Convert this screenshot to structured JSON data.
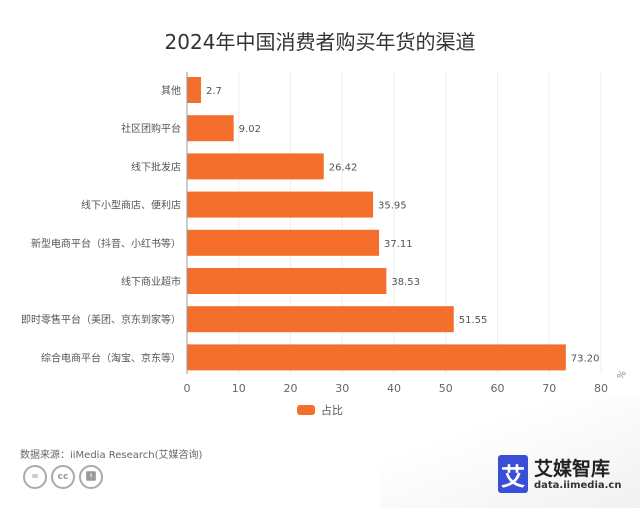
{
  "chart_data": {
    "type": "bar",
    "orientation": "horizontal",
    "title": "2024年中国消费者购买年货的渠道",
    "categories": [
      "其他",
      "社区团购平台",
      "线下批发店",
      "线下小型商店、便利店",
      "新型电商平台（抖音、小红书等）",
      "线下商业超市",
      "即时零售平台（美团、京东到家等）",
      "综合电商平台（淘宝、京东等）"
    ],
    "series": [
      {
        "name": "占比",
        "values": [
          2.7,
          9.02,
          26.42,
          35.95,
          37.11,
          38.53,
          51.55,
          73.2
        ],
        "labels": [
          "2.7",
          "9.02",
          "26.42",
          "35.95",
          "37.11",
          "38.53",
          "51.55",
          "73.20"
        ]
      }
    ],
    "xlim": [
      0,
      80
    ],
    "xticks": [
      0,
      10,
      20,
      30,
      40,
      50,
      60,
      70,
      80
    ],
    "xunit": "%",
    "grid": "vertical",
    "legend": "bottom",
    "color": "#f36f2b"
  },
  "footer": {
    "source": "数据来源：iiMedia Research(艾媒咨询)",
    "cc_icons": [
      "equals-icon",
      "cc-icon",
      "person-icon"
    ]
  },
  "logo": {
    "mark": "艾",
    "name": "艾媒智库",
    "url": "data.iimedia.cn"
  }
}
